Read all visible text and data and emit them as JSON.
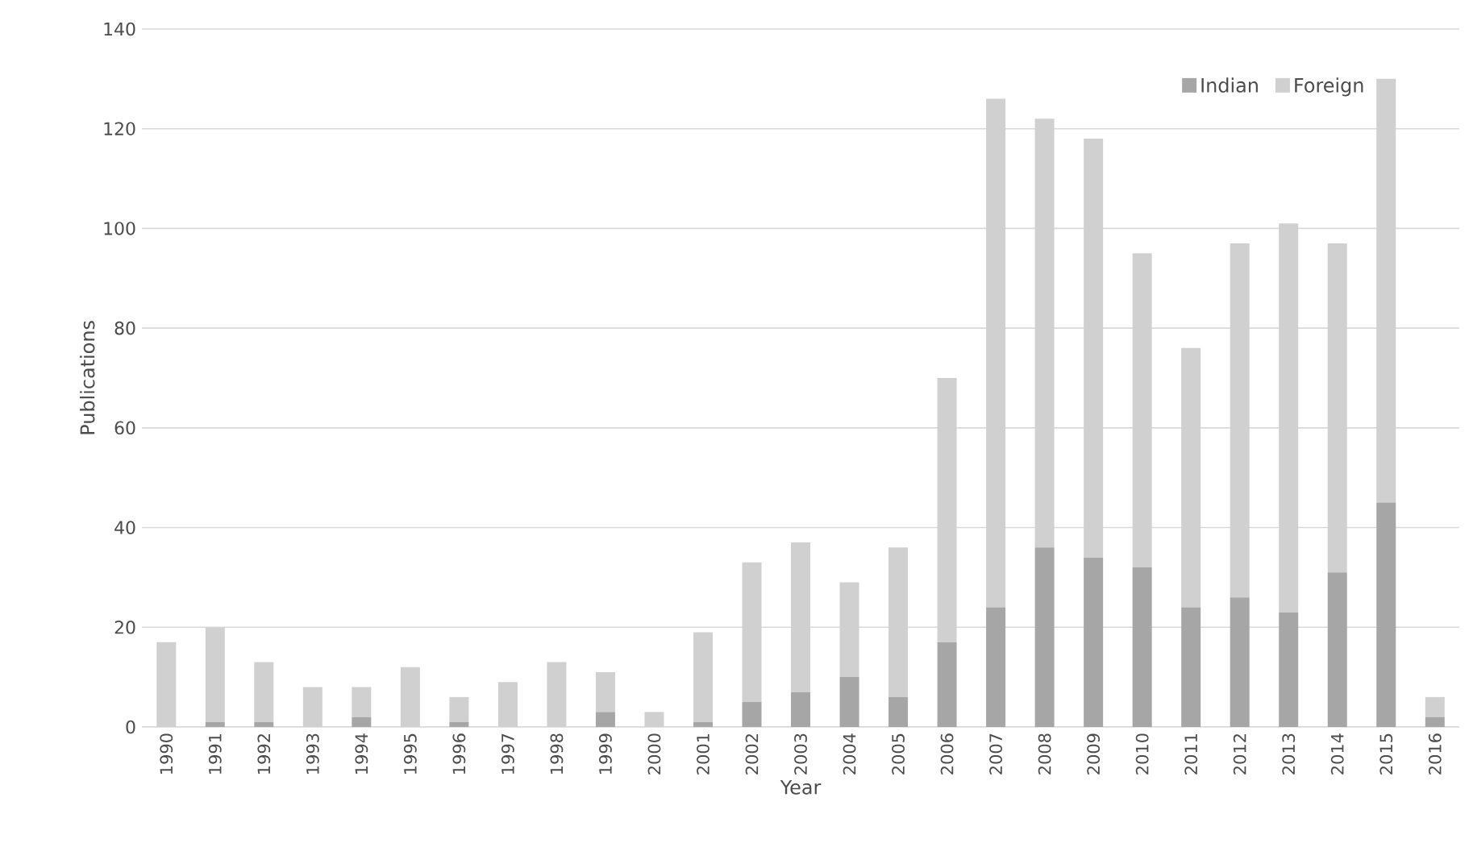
{
  "chart_data": {
    "type": "bar",
    "stacked": true,
    "xlabel": "Year",
    "ylabel": "Publications",
    "categories": [
      "1990",
      "1991",
      "1992",
      "1993",
      "1994",
      "1995",
      "1996",
      "1997",
      "1998",
      "1999",
      "2000",
      "2001",
      "2002",
      "2003",
      "2004",
      "2005",
      "2006",
      "2007",
      "2008",
      "2009",
      "2010",
      "2011",
      "2012",
      "2013",
      "2014",
      "2015",
      "2016"
    ],
    "series": [
      {
        "name": "Indian",
        "color": "#a6a6a6",
        "values": [
          0,
          1,
          1,
          0,
          2,
          0,
          1,
          0,
          0,
          3,
          0,
          1,
          5,
          7,
          10,
          6,
          17,
          24,
          36,
          34,
          32,
          24,
          26,
          23,
          31,
          45,
          2
        ]
      },
      {
        "name": "Foreign",
        "color": "#d0d0d0",
        "values": [
          17,
          19,
          12,
          8,
          6,
          12,
          5,
          9,
          13,
          8,
          3,
          18,
          28,
          30,
          19,
          30,
          53,
          102,
          86,
          84,
          63,
          52,
          71,
          78,
          66,
          85,
          4
        ]
      }
    ],
    "ylim": [
      0,
      140
    ],
    "yticks": [
      0,
      20,
      40,
      60,
      80,
      100,
      120,
      140
    ],
    "grid": "y",
    "legend": "top right"
  }
}
